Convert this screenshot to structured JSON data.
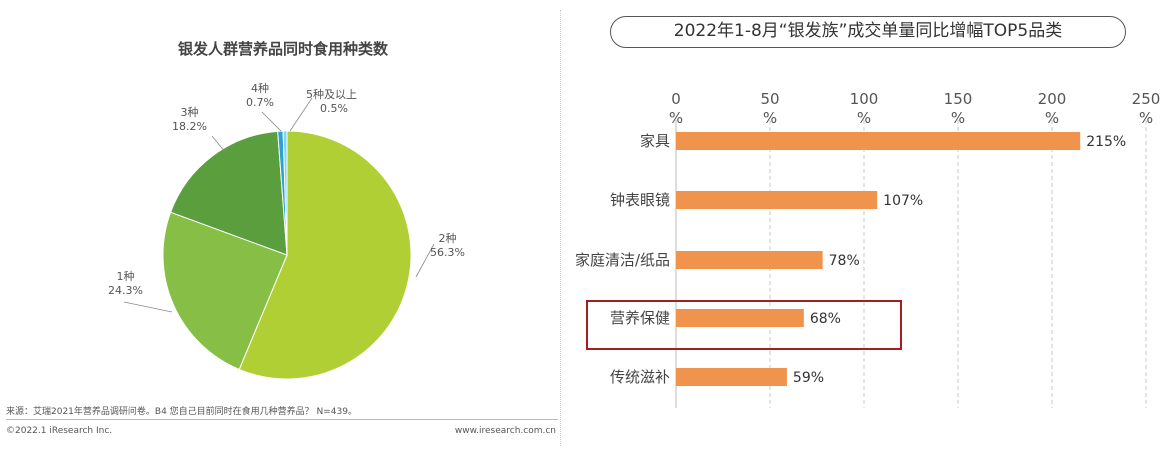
{
  "left_chart": {
    "title": "银发人群营养品同时食用种类数",
    "source": "来源：艾瑞2021年营养品调研问卷。B4 您自己目前同时在食用几种营养品？ N=439。",
    "copyright": "©2022.1 iResearch Inc.",
    "website": "www.iresearch.com.cn",
    "labels": [
      {
        "name": "2种",
        "pct": "56.3%"
      },
      {
        "name": "1种",
        "pct": "24.3%"
      },
      {
        "name": "3种",
        "pct": "18.2%"
      },
      {
        "name": "4种",
        "pct": "0.7%"
      },
      {
        "name": "5种及以上",
        "pct": "0.5%"
      }
    ]
  },
  "right_chart": {
    "title": "2022年1-8月“银发族”成交单量同比增幅TOP5品类"
  },
  "chart_data": [
    {
      "type": "pie",
      "title": "银发人群营养品同时食用种类数",
      "categories": [
        "2种",
        "1种",
        "3种",
        "4种",
        "5种及以上"
      ],
      "values": [
        56.3,
        24.3,
        18.2,
        0.7,
        0.5
      ],
      "unit": "%",
      "colors": [
        "#b0cf34",
        "#87bf46",
        "#5a9e3e",
        "#2ba1d6",
        "#7fd6f2"
      ]
    },
    {
      "type": "bar",
      "orientation": "horizontal",
      "title": "2022年1-8月“银发族”成交单量同比增幅TOP5品类",
      "categories": [
        "家具",
        "钟表眼镜",
        "家庭清洁/纸品",
        "营养保健",
        "传统滋补"
      ],
      "values": [
        215,
        107,
        78,
        68,
        59
      ],
      "value_labels": [
        "215%",
        "107%",
        "78%",
        "68%",
        "59%"
      ],
      "xticks": [
        "0 %",
        "50 %",
        "100 %",
        "150 %",
        "200 %",
        "250 %"
      ],
      "xlim": [
        0,
        250
      ],
      "grid": "vertical dashed",
      "highlighted_category": "营养保健",
      "bar_color": "#f0944d",
      "highlight_color": "#a51e22"
    }
  ]
}
